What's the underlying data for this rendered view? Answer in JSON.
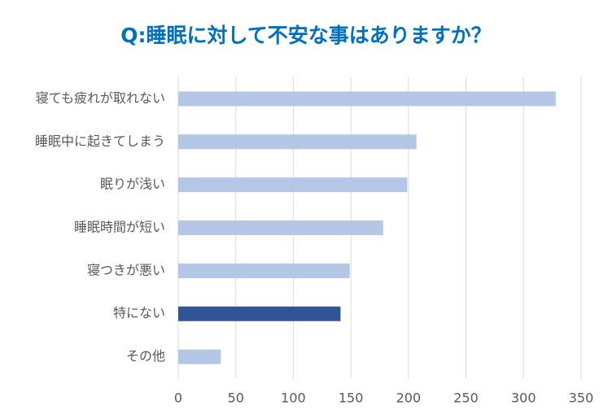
{
  "chart_data": {
    "type": "bar",
    "orientation": "horizontal",
    "title": "Q:睡眠に対して不安な事はありますか？",
    "categories": [
      "寝ても疲れが取れない",
      "睡眠中に起きてしまう",
      "眠りが浅い",
      "睡眠時間が短い",
      "寝つきが悪い",
      "特にない",
      "その他"
    ],
    "values": [
      328,
      207,
      199,
      178,
      149,
      141,
      37
    ],
    "colors": [
      "#b4c7e7",
      "#b4c7e7",
      "#b4c7e7",
      "#b4c7e7",
      "#b4c7e7",
      "#2f5597",
      "#b4c7e7"
    ],
    "xlim": [
      0,
      350
    ],
    "xticks": [
      0,
      50,
      100,
      150,
      200,
      250,
      300,
      350
    ],
    "grid": true
  }
}
